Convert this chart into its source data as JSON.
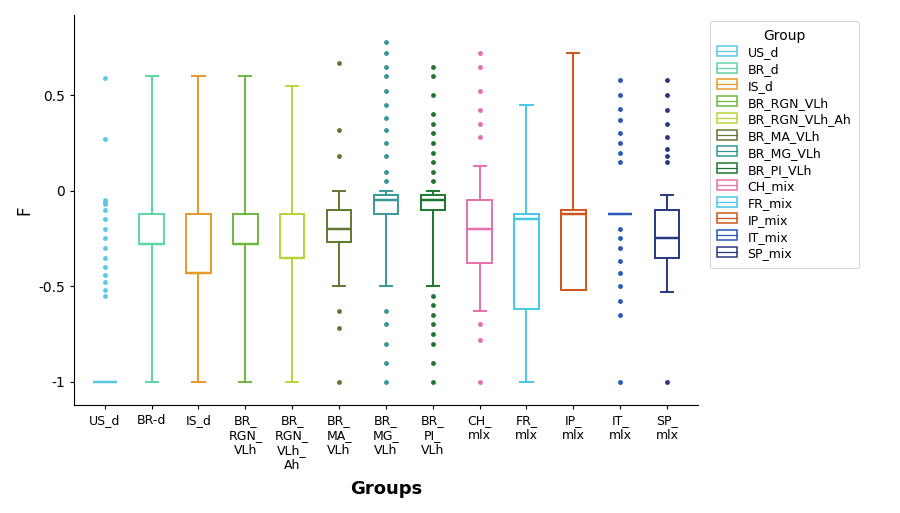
{
  "xtick_labels": [
    "US_d",
    "BR-d",
    "IS_d",
    "BR_\nRGN_\nVLh",
    "BR_\nRGN_\nVLh_\nAh",
    "BR_\nMA_\nVLh",
    "BR_\nMG_\nVLh",
    "BR_\nPI_\nVLh",
    "CH_\nmlx",
    "FR_\nmlx",
    "IP_\nmlx",
    "IT_\nmlx",
    "SP_\nmlx"
  ],
  "legend_labels": [
    "US_d",
    "BR_d",
    "IS_d",
    "BR_RGN_VLh",
    "BR_RGN_VLh_Ah",
    "BR_MA_VLh",
    "BR_MG_VLh",
    "BR_PI_VLh",
    "CH_mix",
    "FR_mix",
    "IP_mix",
    "IT_mix",
    "SP_mix"
  ],
  "colors": [
    "#5BC8EA",
    "#5DD6A5",
    "#E89828",
    "#6DB840",
    "#B8D438",
    "#607830",
    "#389898",
    "#1C7830",
    "#E870A8",
    "#45C8E8",
    "#D05518",
    "#2858B8",
    "#283880"
  ],
  "ylabel": "F",
  "xlabel": "Groups",
  "legend_title": "Group",
  "box_stats": [
    {
      "med": -1.0,
      "q1": -1.0,
      "q3": -1.0,
      "whislo": -1.0,
      "whishi": -1.0,
      "fliers": [
        -0.55,
        -0.52,
        -0.48,
        -0.44,
        -0.4,
        -0.35,
        -0.3,
        -0.25,
        -0.2,
        -0.15,
        -0.1,
        -0.07,
        -0.06,
        -0.05,
        0.27,
        0.59
      ]
    },
    {
      "med": -0.28,
      "q1": -0.28,
      "q3": -0.12,
      "whislo": -1.0,
      "whishi": 0.6,
      "fliers": []
    },
    {
      "med": -0.43,
      "q1": -0.43,
      "q3": -0.12,
      "whislo": -1.0,
      "whishi": 0.6,
      "fliers": []
    },
    {
      "med": -0.28,
      "q1": -0.28,
      "q3": -0.12,
      "whislo": -1.0,
      "whishi": 0.6,
      "fliers": []
    },
    {
      "med": -0.35,
      "q1": -0.35,
      "q3": -0.12,
      "whislo": -1.0,
      "whishi": 0.55,
      "fliers": []
    },
    {
      "med": -0.2,
      "q1": -0.27,
      "q3": -0.1,
      "whislo": -0.5,
      "whishi": 0.0,
      "fliers": [
        -0.63,
        -0.72,
        -1.0,
        0.18,
        0.32,
        0.67
      ]
    },
    {
      "med": -0.05,
      "q1": -0.12,
      "q3": -0.02,
      "whislo": -0.5,
      "whishi": 0.0,
      "fliers": [
        -0.63,
        -0.7,
        -0.8,
        -0.9,
        -1.0,
        0.05,
        0.1,
        0.18,
        0.25,
        0.32,
        0.38,
        0.45,
        0.52,
        0.6,
        0.65,
        0.72,
        0.78
      ]
    },
    {
      "med": -0.05,
      "q1": -0.1,
      "q3": -0.02,
      "whislo": -0.5,
      "whishi": 0.0,
      "fliers": [
        -0.55,
        -0.6,
        -0.65,
        -0.7,
        -0.75,
        -0.8,
        -0.9,
        -1.0,
        0.05,
        0.1,
        0.15,
        0.2,
        0.25,
        0.3,
        0.35,
        0.4,
        0.5,
        0.6,
        0.65
      ]
    },
    {
      "med": -0.2,
      "q1": -0.38,
      "q3": -0.05,
      "whislo": -0.63,
      "whishi": 0.13,
      "fliers": [
        -0.7,
        -0.78,
        -1.0,
        0.28,
        0.35,
        0.42,
        0.52,
        0.65,
        0.72
      ]
    },
    {
      "med": -0.15,
      "q1": -0.62,
      "q3": -0.12,
      "whislo": -1.0,
      "whishi": 0.45,
      "fliers": []
    },
    {
      "med": -0.12,
      "q1": -0.52,
      "q3": -0.1,
      "whislo": -0.52,
      "whishi": 0.72,
      "fliers": []
    },
    {
      "med": -0.12,
      "q1": -0.12,
      "q3": -0.12,
      "whislo": -0.12,
      "whishi": -0.12,
      "fliers": [
        -0.2,
        -0.25,
        -0.3,
        -0.37,
        -0.43,
        -0.5,
        -0.58,
        -0.65,
        -1.0,
        0.15,
        0.2,
        0.25,
        0.3,
        0.37,
        0.43,
        0.5,
        0.58
      ]
    },
    {
      "med": -0.25,
      "q1": -0.35,
      "q3": -0.1,
      "whislo": -0.53,
      "whishi": -0.02,
      "fliers": [
        -1.0,
        0.15,
        0.18,
        0.22,
        0.28,
        0.35,
        0.42,
        0.5,
        0.58
      ]
    }
  ],
  "ylim": [
    -1.12,
    0.92
  ],
  "yticks": [
    -1.0,
    -0.5,
    0.0,
    0.5
  ],
  "background_color": "#ffffff",
  "box_width": 0.52,
  "lw": 1.4,
  "figsize": [
    9.0,
    5.13
  ],
  "dpi": 100
}
